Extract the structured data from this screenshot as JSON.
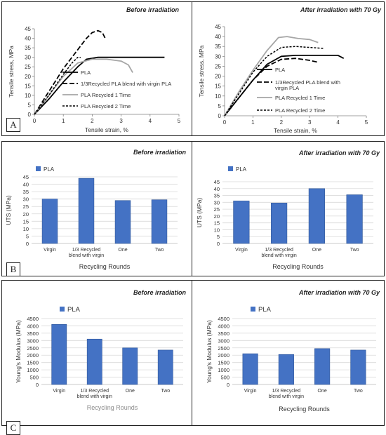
{
  "labels": {
    "a": "A",
    "b": "B",
    "c": "C"
  },
  "colors": {
    "bar": "#4472C4",
    "line_black": "#000000",
    "line_gray": "#A6A6A6",
    "grid": "#D9D9D9",
    "axis": "#808080"
  },
  "chart_data": [
    {
      "id": "A-left",
      "type": "line",
      "title": "Before irradiation",
      "xlabel": "Tensile strain, %",
      "ylabel": "Tensile stress, MPa",
      "xlim": [
        0,
        5
      ],
      "ylim": [
        0,
        45
      ],
      "xticks": [
        0,
        1,
        2,
        3,
        4,
        5
      ],
      "yticks": [
        0,
        5,
        10,
        15,
        20,
        25,
        30,
        35,
        40,
        45
      ],
      "grid": false,
      "legend_position": "right",
      "series": [
        {
          "name": "PLA",
          "style": "solid-black",
          "x": [
            0,
            0.5,
            1.0,
            1.5,
            1.8,
            2.2,
            3.0,
            4.0,
            4.5
          ],
          "y": [
            0,
            8,
            17,
            25,
            29,
            30,
            30,
            30,
            30
          ]
        },
        {
          "name": "1/3Recycled PLA blend with virgin PLA",
          "style": "longdash-black",
          "x": [
            0,
            0.5,
            1.0,
            1.5,
            1.8,
            2.0,
            2.2,
            2.35,
            2.45
          ],
          "y": [
            0,
            12,
            24,
            34,
            40,
            43,
            44,
            43,
            40
          ]
        },
        {
          "name": "PLA Recycled 1 Time",
          "style": "solid-gray",
          "x": [
            0,
            0.5,
            1.0,
            1.5,
            2.0,
            2.5,
            3.0,
            3.25,
            3.4
          ],
          "y": [
            0,
            10,
            20,
            27,
            29,
            29,
            28,
            26,
            22
          ]
        },
        {
          "name": "PLA Recycled 2 Time",
          "style": "shortdash-black",
          "x": [
            0,
            0.5,
            1.0,
            1.3,
            1.5,
            1.6
          ],
          "y": [
            0,
            10,
            21,
            27,
            30,
            30
          ]
        }
      ]
    },
    {
      "id": "A-right",
      "type": "line",
      "title": "After irradiation with 70 Gy",
      "xlabel": "Tensile strain, %",
      "ylabel": "Tensile stress, MPa",
      "xlim": [
        0,
        5
      ],
      "ylim": [
        0,
        45
      ],
      "xticks": [
        0,
        1,
        2,
        3,
        4,
        5
      ],
      "yticks": [
        0,
        5,
        10,
        15,
        20,
        25,
        30,
        35,
        40,
        45
      ],
      "grid": false,
      "legend_position": "right",
      "series": [
        {
          "name": "PLA",
          "style": "solid-black",
          "x": [
            0,
            0.5,
            1.0,
            1.5,
            2.0,
            2.5,
            3.0,
            3.5,
            4.0,
            4.2
          ],
          "y": [
            0,
            9,
            18,
            26,
            30,
            30.5,
            30.5,
            30.5,
            30.5,
            29
          ]
        },
        {
          "name": "1/3Recycled PLA blend with virgin PLA",
          "style": "longdash-black",
          "x": [
            0,
            0.5,
            1.0,
            1.5,
            2.0,
            2.5,
            3.0,
            3.3
          ],
          "y": [
            0,
            9,
            18,
            25,
            28.5,
            29,
            28,
            27
          ]
        },
        {
          "name": "PLA Recycled 1 Time",
          "style": "solid-gray",
          "x": [
            0,
            0.5,
            1.0,
            1.5,
            1.9,
            2.2,
            2.6,
            3.0,
            3.3
          ],
          "y": [
            0,
            12,
            23,
            33,
            39.5,
            40,
            39,
            38.5,
            37
          ]
        },
        {
          "name": "PLA Recycled 2 Time",
          "style": "shortdash-black",
          "x": [
            0,
            0.5,
            1.0,
            1.5,
            2.0,
            2.5,
            3.0,
            3.5
          ],
          "y": [
            0,
            11,
            22,
            30,
            34.5,
            35,
            34.5,
            34
          ]
        }
      ]
    },
    {
      "id": "B-left",
      "type": "bar",
      "title": "Before irradiation",
      "xlabel": "Recycling Rounds",
      "ylabel": "UTS (MPa)",
      "ylim": [
        0,
        45
      ],
      "yticks": [
        0,
        5,
        10,
        15,
        20,
        25,
        30,
        35,
        40,
        45
      ],
      "grid": true,
      "legend_position": "top-left",
      "categories": [
        "Virgin",
        "1/3 Recycled\nblend with virgin",
        "One",
        "Two"
      ],
      "series": [
        {
          "name": "PLA",
          "values": [
            30,
            44,
            29,
            29.5
          ]
        }
      ]
    },
    {
      "id": "B-right",
      "type": "bar",
      "title": "After irradiation with 70 Gy",
      "xlabel": "Recycling Rounds",
      "ylabel": "UTS (MPa)",
      "ylim": [
        0,
        45
      ],
      "yticks": [
        0,
        5,
        10,
        15,
        20,
        25,
        30,
        35,
        40,
        45
      ],
      "grid": true,
      "legend_position": "top-left",
      "categories": [
        "Virgin",
        "1/3 Recycled\nblend with virgin",
        "One",
        "Two"
      ],
      "series": [
        {
          "name": "PLA",
          "values": [
            31,
            29.5,
            40,
            35.5
          ]
        }
      ]
    },
    {
      "id": "C-left",
      "type": "bar",
      "title": "Before irradiation",
      "xlabel": "Recycling Rounds",
      "ylabel": "Young's Modulus (MPa)",
      "ylim": [
        0,
        4500
      ],
      "yticks": [
        0,
        500,
        1000,
        1500,
        2000,
        2500,
        3000,
        3500,
        4000,
        4500
      ],
      "grid": true,
      "legend_position": "top-left",
      "categories": [
        "Virgin",
        "1/3 Recycled\nblend with virgin",
        "One",
        "Two"
      ],
      "series": [
        {
          "name": "PLA",
          "values": [
            4100,
            3100,
            2500,
            2350
          ]
        }
      ]
    },
    {
      "id": "C-right",
      "type": "bar",
      "title": "After irradiation with 70 Gy",
      "xlabel": "Recycling Rounds",
      "ylabel": "Young's Modulus (MPa)",
      "ylim": [
        0,
        4500
      ],
      "yticks": [
        0,
        500,
        1000,
        1500,
        2000,
        2500,
        3000,
        3500,
        4000,
        4500
      ],
      "grid": true,
      "legend_position": "top-left",
      "categories": [
        "Virgin",
        "1/3 Recycled\nblend with virgin",
        "One",
        "Two"
      ],
      "series": [
        {
          "name": "PLA",
          "values": [
            2100,
            2050,
            2450,
            2350
          ]
        }
      ]
    }
  ]
}
